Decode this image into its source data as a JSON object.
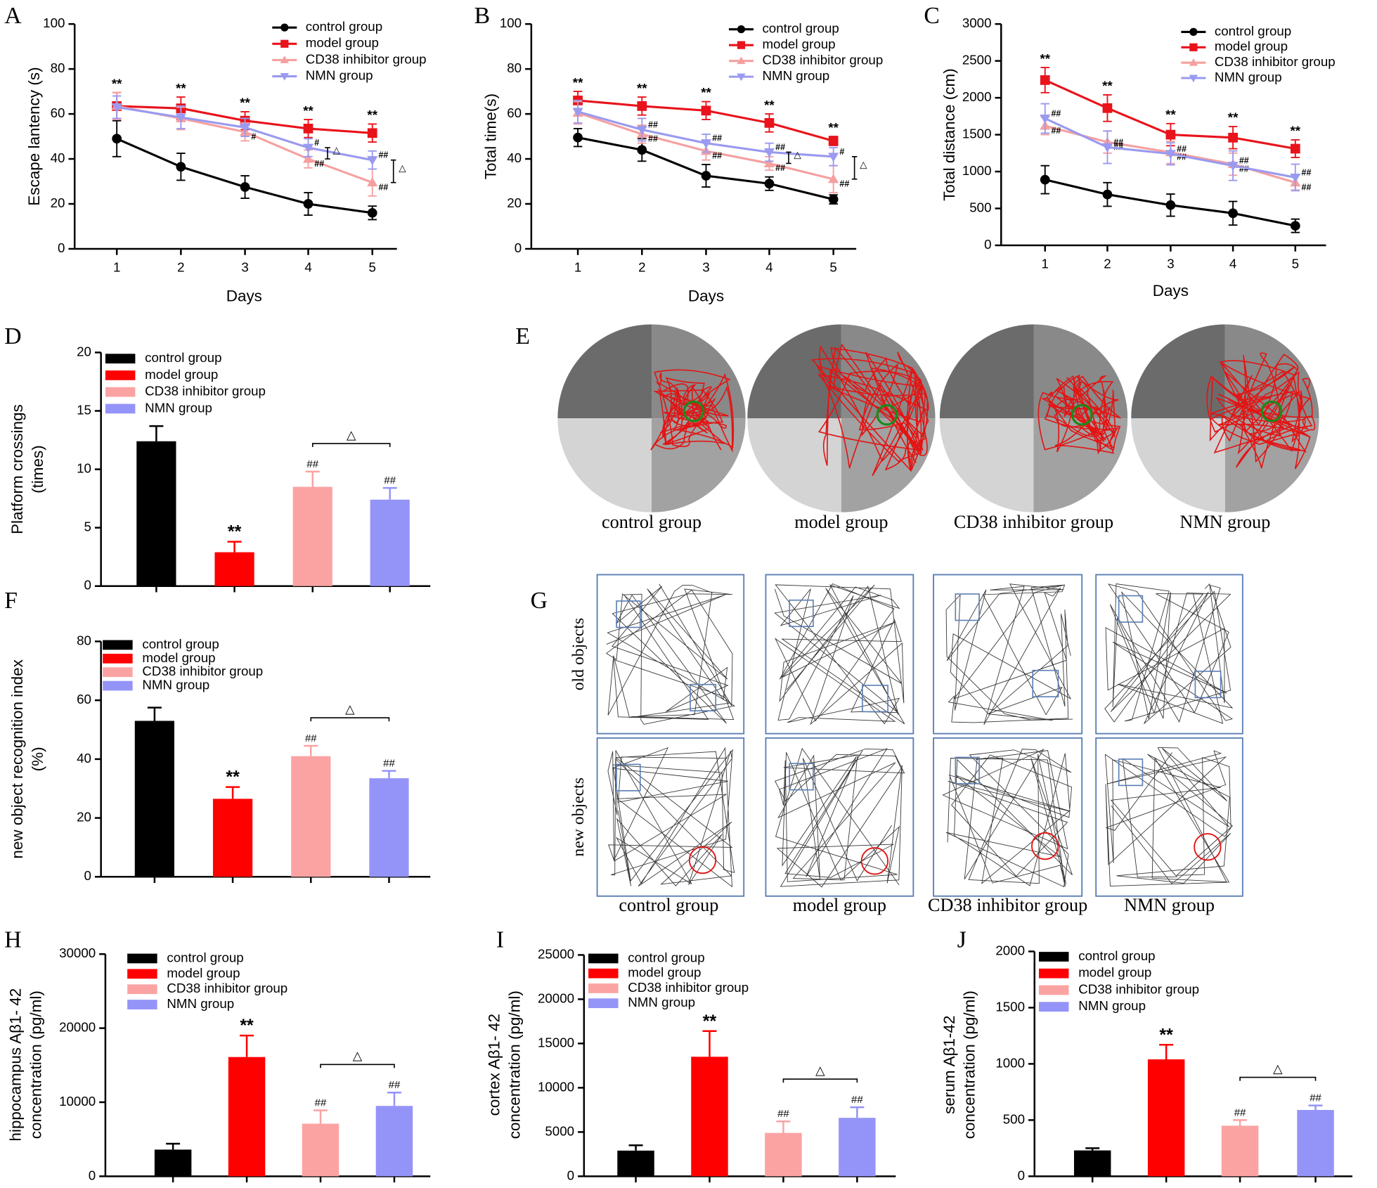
{
  "chart_data": [
    {
      "panel": "A",
      "type": "line",
      "xlabel": "Days",
      "ylabel": [
        "Escape lantency (s)"
      ],
      "categories": [
        "1",
        "2",
        "3",
        "4",
        "5"
      ],
      "ylim": [
        0,
        100
      ],
      "yticks": [
        0,
        20,
        40,
        60,
        80,
        100
      ],
      "series": [
        {
          "name": "control group",
          "color": "#000000",
          "marker": "circle",
          "values": [
            49,
            36.5,
            27.5,
            20,
            16
          ],
          "errors": [
            8,
            6,
            5,
            5,
            3
          ],
          "annotations": [
            null,
            null,
            null,
            null,
            null
          ]
        },
        {
          "name": "model group",
          "color": "#e8131b",
          "marker": "square",
          "values": [
            63.5,
            62.5,
            57,
            53.5,
            51.5
          ],
          "errors": [
            6,
            5,
            4,
            4,
            4
          ],
          "annotations": [
            "**",
            "**",
            "**",
            "**",
            "**"
          ]
        },
        {
          "name": "CD38 inhibitor group",
          "color": "#f5a0a0",
          "marker": "triangle-up",
          "values": [
            63.5,
            58,
            52,
            40,
            29.5
          ],
          "errors": [
            6,
            5,
            4,
            4,
            6
          ],
          "annotations": [
            null,
            null,
            "#",
            "##",
            "##"
          ]
        },
        {
          "name": "NMN group",
          "color": "#9a9af0",
          "marker": "triangle-down",
          "values": [
            63,
            58.5,
            54,
            45,
            39.5
          ],
          "errors": [
            5,
            5,
            4,
            4,
            4
          ],
          "annotations": [
            null,
            null,
            null,
            "#",
            "##"
          ]
        }
      ],
      "bracket_labels": [
        null,
        null,
        null,
        "△",
        "△"
      ]
    },
    {
      "panel": "B",
      "type": "line",
      "xlabel": "Days",
      "ylabel": [
        "Total time(s)"
      ],
      "categories": [
        "1",
        "2",
        "3",
        "4",
        "5"
      ],
      "ylim": [
        0,
        100
      ],
      "yticks": [
        0,
        20,
        40,
        60,
        80,
        100
      ],
      "series": [
        {
          "name": "control group",
          "color": "#000000",
          "marker": "circle",
          "values": [
            49.5,
            44,
            32.5,
            29,
            22
          ],
          "errors": [
            4,
            5,
            5,
            3,
            2
          ],
          "annotations": [
            null,
            null,
            null,
            null,
            null
          ]
        },
        {
          "name": "model group",
          "color": "#e8131b",
          "marker": "square",
          "values": [
            66,
            63.5,
            61.5,
            56,
            48
          ],
          "errors": [
            4,
            4,
            4,
            4,
            2
          ],
          "annotations": [
            "**",
            "**",
            "**",
            "**",
            "**"
          ]
        },
        {
          "name": "CD38 inhibitor group",
          "color": "#f5a0a0",
          "marker": "triangle-up",
          "values": [
            60.5,
            51,
            43.5,
            38,
            31
          ],
          "errors": [
            5,
            4,
            4,
            3,
            6
          ],
          "annotations": [
            null,
            "##",
            "##",
            "##",
            "##"
          ]
        },
        {
          "name": "NMN group",
          "color": "#9a9af0",
          "marker": "triangle-down",
          "values": [
            61,
            53,
            47,
            43,
            41
          ],
          "errors": [
            5,
            5,
            4,
            4,
            4
          ],
          "annotations": [
            null,
            "##",
            "##",
            "##",
            "#"
          ]
        }
      ],
      "bracket_labels": [
        null,
        null,
        null,
        "△",
        "△"
      ]
    },
    {
      "panel": "C",
      "type": "line",
      "xlabel": "Days",
      "ylabel": [
        "Total distance (cm)"
      ],
      "categories": [
        "1",
        "2",
        "3",
        "4",
        "5"
      ],
      "ylim": [
        0,
        3000
      ],
      "yticks": [
        0,
        500,
        1000,
        1500,
        2000,
        2500,
        3000
      ],
      "series": [
        {
          "name": "control group",
          "color": "#000000",
          "marker": "circle",
          "values": [
            890,
            690,
            545,
            435,
            265
          ],
          "errors": [
            190,
            160,
            150,
            160,
            90
          ],
          "annotations": [
            null,
            null,
            null,
            null,
            null
          ]
        },
        {
          "name": "model group",
          "color": "#e8131b",
          "marker": "square",
          "values": [
            2240,
            1860,
            1500,
            1460,
            1310
          ],
          "errors": [
            170,
            180,
            150,
            150,
            120
          ],
          "annotations": [
            "**",
            "**",
            "**",
            "**",
            "**"
          ]
        },
        {
          "name": "CD38 inhibitor group",
          "color": "#f5a0a0",
          "marker": "triangle-up",
          "values": [
            1620,
            1400,
            1260,
            1100,
            850
          ],
          "errors": [
            120,
            150,
            150,
            150,
            100
          ],
          "annotations": [
            "##",
            "##",
            "##",
            "##",
            "##"
          ]
        },
        {
          "name": "NMN group",
          "color": "#9a9af0",
          "marker": "triangle-down",
          "values": [
            1720,
            1330,
            1240,
            1080,
            920
          ],
          "errors": [
            200,
            220,
            150,
            200,
            180
          ],
          "annotations": [
            "##",
            "##",
            "##",
            "##",
            "##"
          ]
        }
      ]
    },
    {
      "panel": "D",
      "type": "bar",
      "ylabel": [
        "Platform crossings",
        "(times)"
      ],
      "categories": [
        "control group",
        "model group",
        "CD38 inhibitor group",
        "NMN group"
      ],
      "colors": [
        "#000000",
        "#fe0000",
        "#fba3a3",
        "#9494f8"
      ],
      "values": [
        12.4,
        2.9,
        8.5,
        7.4
      ],
      "errors": [
        1.3,
        0.9,
        1.3,
        1.0
      ],
      "annotations": [
        null,
        "**",
        "##",
        "##"
      ],
      "bracket_label": "△",
      "ylim": [
        0,
        20
      ],
      "yticks": [
        0,
        5,
        10,
        15,
        20
      ]
    },
    {
      "panel": "F",
      "type": "bar",
      "ylabel": [
        "new object recognition index",
        "(%)"
      ],
      "categories": [
        "control group",
        "model group",
        "CD38 inhibitor group",
        "NMN group"
      ],
      "colors": [
        "#000000",
        "#fe0000",
        "#fba3a3",
        "#9494f8"
      ],
      "values": [
        53,
        26.5,
        41,
        33.5
      ],
      "errors": [
        4.5,
        4,
        3.5,
        2.5
      ],
      "annotations": [
        null,
        "**",
        "##",
        "##"
      ],
      "bracket_label": "△",
      "ylim": [
        0,
        80
      ],
      "yticks": [
        0,
        20,
        40,
        60,
        80
      ]
    },
    {
      "panel": "H",
      "type": "bar",
      "ylabel": [
        "hippocampus Aβ1- 42",
        "concentration  (pg/ml)"
      ],
      "categories": [
        "control group",
        "model group",
        "CD38 inhibitor group",
        "NMN group"
      ],
      "colors": [
        "#000000",
        "#fe0000",
        "#fba3a3",
        "#9494f8"
      ],
      "values": [
        3600,
        16100,
        7100,
        9500
      ],
      "errors": [
        800,
        2900,
        1800,
        1800
      ],
      "annotations": [
        null,
        "**",
        "##",
        "##"
      ],
      "bracket_label": "△",
      "ylim": [
        0,
        30000
      ],
      "yticks": [
        0,
        10000,
        20000,
        30000
      ]
    },
    {
      "panel": "I",
      "type": "bar",
      "ylabel": [
        "cortex Aβ1- 42",
        "concentration (pg/ml)"
      ],
      "categories": [
        "control group",
        "model group",
        "CD38 inhibitor group",
        "NMN group"
      ],
      "colors": [
        "#000000",
        "#fe0000",
        "#fba3a3",
        "#9494f8"
      ],
      "values": [
        2900,
        13500,
        4900,
        6600
      ],
      "errors": [
        600,
        2900,
        1300,
        1200
      ],
      "annotations": [
        null,
        "**",
        "##",
        "##"
      ],
      "bracket_label": "△",
      "ylim": [
        0,
        25000
      ],
      "yticks": [
        0,
        5000,
        10000,
        15000,
        20000,
        25000
      ]
    },
    {
      "panel": "J",
      "type": "bar",
      "ylabel": [
        "serum Aβ1-42",
        "concentration (pg/ml)"
      ],
      "categories": [
        "control group",
        "model group",
        "CD38 inhibitor group",
        "NMN group"
      ],
      "colors": [
        "#000000",
        "#fe0000",
        "#fba3a3",
        "#9494f8"
      ],
      "values": [
        230,
        1040,
        450,
        590
      ],
      "errors": [
        20,
        130,
        50,
        40
      ],
      "annotations": [
        null,
        "**",
        "##",
        "##"
      ],
      "bracket_label": "△",
      "ylim": [
        0,
        2000
      ],
      "yticks": [
        0,
        500,
        1000,
        1500,
        2000
      ]
    }
  ],
  "image_panels": [
    {
      "panel": "E",
      "labels": [
        "control group",
        "model group",
        "CD38 inhibitor group",
        "NMN group"
      ]
    },
    {
      "panel": "G",
      "row_labels": [
        "old objects",
        "new objects"
      ],
      "labels": [
        "control group",
        "model group",
        "CD38 inhibitor group",
        "NMN group"
      ]
    }
  ]
}
